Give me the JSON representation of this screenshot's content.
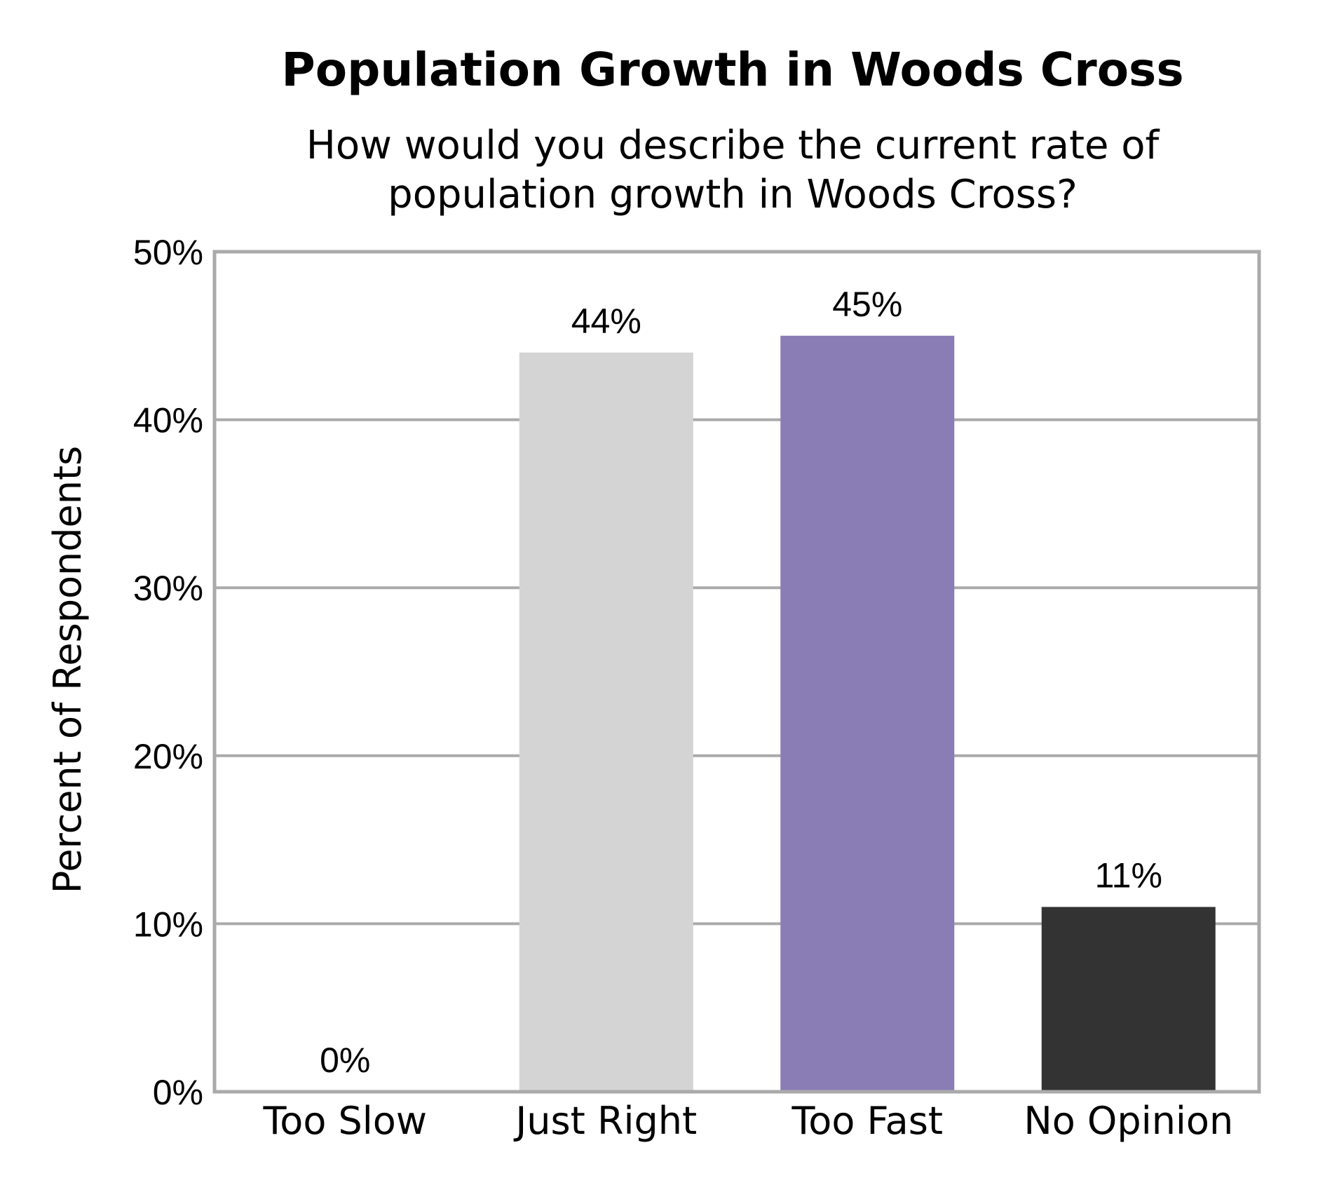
{
  "chart_data": {
    "type": "bar",
    "title": "Population Growth in Woods Cross",
    "subtitle_lines": [
      "How would you describe the current rate of",
      "population growth in Woods Cross?"
    ],
    "xlabel": "",
    "ylabel": "Percent of Respondents",
    "categories": [
      "Too Slow",
      "Just Right",
      "Too Fast",
      "No Opinion"
    ],
    "values": [
      0,
      44,
      45,
      11
    ],
    "data_labels": [
      "0%",
      "44%",
      "45%",
      "11%"
    ],
    "bar_colors": [
      "#d4d4d4",
      "#d4d4d4",
      "#8a7db5",
      "#333333"
    ],
    "ylim": [
      0,
      50
    ],
    "yticks": [
      0,
      10,
      20,
      30,
      40,
      50
    ],
    "ytick_labels": [
      "0%",
      "10%",
      "20%",
      "30%",
      "40%",
      "50%"
    ],
    "grid": true,
    "grid_color": "#aaaaaa",
    "frame_color": "#aaaaaa"
  }
}
